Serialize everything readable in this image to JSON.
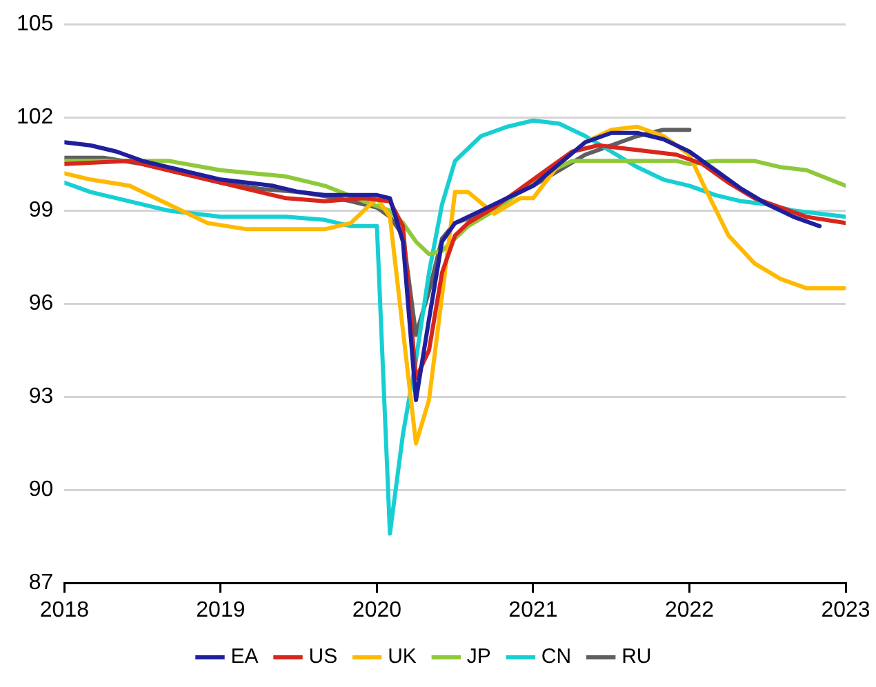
{
  "chart_data": {
    "type": "line",
    "x": [
      "2018-01",
      "2018-03",
      "2018-05",
      "2018-07",
      "2018-09",
      "2018-11",
      "2019-01",
      "2019-03",
      "2019-05",
      "2019-07",
      "2019-09",
      "2019-11",
      "2020-01",
      "2020-02",
      "2020-03",
      "2020-04",
      "2020-05",
      "2020-06",
      "2020-07",
      "2020-09",
      "2020-11",
      "2021-01",
      "2021-03",
      "2021-05",
      "2021-07",
      "2021-09",
      "2021-11",
      "2022-01",
      "2022-03",
      "2022-05",
      "2022-07",
      "2022-09",
      "2022-11"
    ],
    "series": [
      {
        "name": "EA",
        "color": "#1f1f9e",
        "values": [
          101.2,
          101.1,
          100.9,
          100.6,
          100.4,
          100.2,
          100.0,
          99.9,
          99.8,
          99.6,
          99.5,
          99.5,
          99.5,
          99.4,
          98.0,
          92.9,
          95.5,
          98.0,
          98.6,
          99.0,
          99.4,
          99.8,
          100.5,
          101.2,
          101.5,
          101.5,
          101.3,
          100.9,
          100.3,
          99.7,
          99.2,
          98.8,
          98.5
        ]
      },
      {
        "name": "US",
        "color": "#d9261c",
        "x": [
          "2018-01",
          "2018-06",
          "2019-01",
          "2019-06",
          "2019-09",
          "2019-12",
          "2020-02",
          "2020-03",
          "2020-04",
          "2020-05",
          "2020-06",
          "2020-07",
          "2020-08",
          "2020-10",
          "2020-12",
          "2021-02",
          "2021-04",
          "2021-06",
          "2021-08",
          "2021-10",
          "2021-12",
          "2022-02",
          "2022-04",
          "2022-06",
          "2022-08",
          "2022-10",
          "2023-01"
        ],
        "values": [
          100.5,
          100.6,
          99.9,
          99.4,
          99.3,
          99.4,
          99.3,
          98.5,
          93.6,
          94.5,
          97.0,
          98.2,
          98.6,
          99.1,
          99.7,
          100.3,
          100.9,
          101.1,
          101.0,
          100.9,
          100.8,
          100.5,
          99.9,
          99.4,
          99.1,
          98.8,
          98.6
        ]
      },
      {
        "name": "UK",
        "color": "#ffb900",
        "x": [
          "2018-01",
          "2018-03",
          "2018-06",
          "2018-09",
          "2018-12",
          "2019-03",
          "2019-06",
          "2019-09",
          "2019-11",
          "2020-01",
          "2020-02",
          "2020-04",
          "2020-05",
          "2020-07",
          "2020-08",
          "2020-10",
          "2020-12",
          "2021-01",
          "2021-03",
          "2021-05",
          "2021-07",
          "2021-09",
          "2021-11",
          "2022-01",
          "2022-02",
          "2022-04",
          "2022-06",
          "2022-08",
          "2022-10",
          "2023-01"
        ],
        "values": [
          100.2,
          100.0,
          99.8,
          99.2,
          98.6,
          98.4,
          98.4,
          98.4,
          98.6,
          99.4,
          98.8,
          91.5,
          92.9,
          99.6,
          99.6,
          98.9,
          99.4,
          99.4,
          100.5,
          101.2,
          101.6,
          101.7,
          101.4,
          100.8,
          99.9,
          98.2,
          97.3,
          96.8,
          96.5,
          96.5
        ]
      },
      {
        "name": "JP",
        "color": "#8fc93a",
        "x": [
          "2018-01",
          "2018-06",
          "2018-09",
          "2019-01",
          "2019-06",
          "2019-09",
          "2019-12",
          "2020-02",
          "2020-03",
          "2020-04",
          "2020-05",
          "2020-06",
          "2020-07",
          "2020-08",
          "2020-10",
          "2020-12",
          "2021-02",
          "2021-04",
          "2021-12",
          "2022-01",
          "2022-03",
          "2022-06",
          "2022-08",
          "2022-10",
          "2023-01"
        ],
        "values": [
          100.6,
          100.6,
          100.6,
          100.3,
          100.1,
          99.8,
          99.3,
          99.0,
          98.6,
          98.0,
          97.6,
          97.7,
          98.1,
          98.5,
          99.0,
          99.6,
          100.2,
          100.6,
          100.6,
          100.5,
          100.6,
          100.6,
          100.4,
          100.3,
          99.8
        ]
      },
      {
        "name": "CN",
        "color": "#17cfd2",
        "x": [
          "2018-01",
          "2018-03",
          "2018-05",
          "2018-07",
          "2018-09",
          "2018-11",
          "2019-01",
          "2019-06",
          "2019-09",
          "2019-11",
          "2020-01",
          "2020-02",
          "2020-03",
          "2020-04",
          "2020-05",
          "2020-06",
          "2020-07",
          "2020-09",
          "2020-11",
          "2021-01",
          "2021-03",
          "2021-05",
          "2021-07",
          "2021-09",
          "2021-11",
          "2022-01",
          "2022-03",
          "2022-05",
          "2022-07",
          "2022-09",
          "2022-11",
          "2023-01"
        ],
        "values": [
          99.9,
          99.6,
          99.4,
          99.2,
          99.0,
          98.9,
          98.8,
          98.8,
          98.7,
          98.5,
          98.5,
          88.6,
          91.8,
          94.2,
          97.0,
          99.2,
          100.6,
          101.4,
          101.7,
          101.9,
          101.8,
          101.4,
          100.9,
          100.4,
          100.0,
          99.8,
          99.5,
          99.3,
          99.2,
          99.0,
          98.9,
          98.8
        ]
      },
      {
        "name": "RU",
        "color": "#5f5f5f",
        "x": [
          "2018-01",
          "2018-04",
          "2018-07",
          "2018-10",
          "2019-01",
          "2019-04",
          "2019-07",
          "2019-10",
          "2020-01",
          "2020-02",
          "2020-03",
          "2020-04",
          "2020-05",
          "2020-06",
          "2020-07",
          "2020-09",
          "2020-11",
          "2021-01",
          "2021-03",
          "2021-05",
          "2021-07",
          "2021-09",
          "2021-11",
          "2022-01"
        ],
        "values": [
          100.7,
          100.7,
          100.5,
          100.2,
          99.9,
          99.7,
          99.6,
          99.4,
          99.1,
          98.8,
          98.2,
          95.0,
          96.4,
          98.1,
          98.6,
          98.9,
          99.4,
          99.8,
          100.3,
          100.8,
          101.1,
          101.4,
          101.6,
          101.6
        ]
      }
    ],
    "xlim": [
      "2018-01",
      "2023-01"
    ],
    "xticks": [
      "2018",
      "2019",
      "2020",
      "2021",
      "2022",
      "2023"
    ],
    "ylim": [
      87,
      105
    ],
    "yticks": [
      87,
      90,
      93,
      96,
      99,
      102,
      105
    ],
    "grid": "y",
    "legend": "bottom",
    "marker": "none",
    "line_style": "solid"
  }
}
